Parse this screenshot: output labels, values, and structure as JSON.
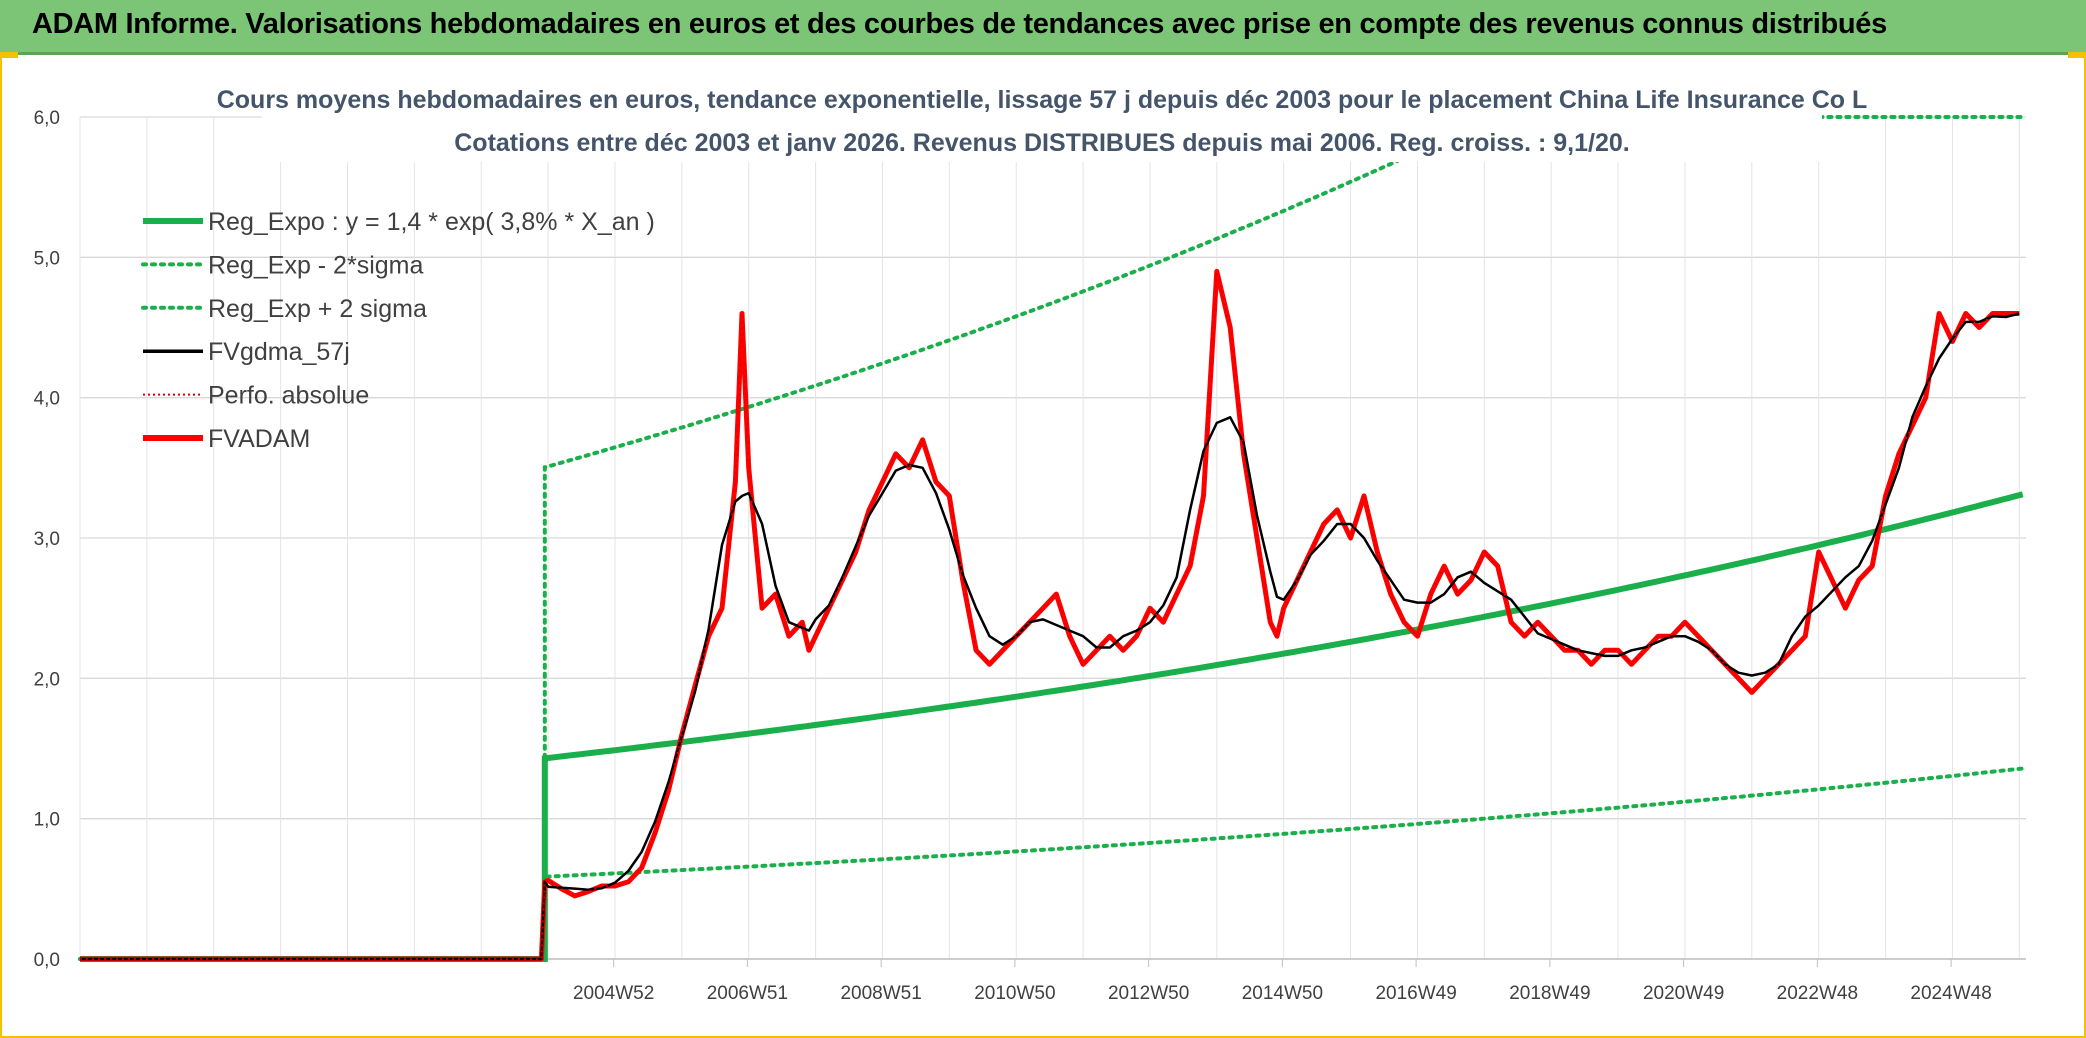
{
  "banner": {
    "title": "ADAM Informe. Valorisations hebdomadaires en euros et des courbes de tendances avec prise en compte des revenus connus distribués"
  },
  "chart_data": {
    "type": "line",
    "title_line1": "Cours moyens hebdomadaires en euros, tendance exponentielle, lissage 57 j depuis déc 2003 pour le placement China Life Insurance Co L",
    "title_line2": "Cotations entre déc 2003 et janv 2026. Revenus DISTRIBUES depuis mai 2006. Reg. croiss. : 9,1/20.",
    "ylim": [
      0,
      6
    ],
    "y_ticks": [
      "0,0",
      "1,0",
      "2,0",
      "3,0",
      "4,0",
      "5,0",
      "6,0"
    ],
    "x_ticks": [
      "2004W52",
      "2006W51",
      "2008W51",
      "2010W50",
      "2012W50",
      "2014W50",
      "2016W49",
      "2018W49",
      "2020W49",
      "2022W48",
      "2024W48"
    ],
    "x_range_years": [
      1997.0,
      2026.1
    ],
    "grid": true,
    "legend_position": "top-left",
    "colors": {
      "reg_expo": "#1aaf4b",
      "fvgdma": "#000000",
      "perfo": "#e00000",
      "fvadam": "#ff0000"
    },
    "legend": [
      {
        "key": "reg_expo",
        "label": "Reg_Expo : y = 1,4 * exp( 3,8% *  X_an )",
        "style": "solid-thick",
        "color": "#1aaf4b"
      },
      {
        "key": "reg_lo",
        "label": "Reg_Exp - 2*sigma",
        "style": "dotted",
        "color": "#1aaf4b"
      },
      {
        "key": "reg_hi",
        "label": "Reg_Exp + 2 sigma",
        "style": "dotted",
        "color": "#1aaf4b"
      },
      {
        "key": "fvgdma",
        "label": "FVgdma_57j",
        "style": "solid",
        "color": "#000000"
      },
      {
        "key": "perfo",
        "label": "Perfo. absolue",
        "style": "dotted-thin",
        "color": "#e00000"
      },
      {
        "key": "fvadam",
        "label": "FVADAM",
        "style": "solid-thick",
        "color": "#ff0000"
      }
    ],
    "regression": {
      "a": 1.43,
      "growth": 0.038,
      "start_year": 2003.95,
      "end_year": 2026.1,
      "lo_factor": 0.41,
      "hi_factor": 2.45
    },
    "series_fvadam": {
      "x": [
        1997.0,
        2003.9,
        2003.95,
        2004.0,
        2004.2,
        2004.4,
        2004.6,
        2004.8,
        2005.0,
        2005.2,
        2005.4,
        2005.6,
        2005.8,
        2006.0,
        2006.2,
        2006.4,
        2006.6,
        2006.8,
        2006.9,
        2007.0,
        2007.2,
        2007.4,
        2007.6,
        2007.8,
        2007.9,
        2008.0,
        2008.2,
        2008.4,
        2008.6,
        2008.8,
        2009.0,
        2009.2,
        2009.4,
        2009.6,
        2009.8,
        2010.0,
        2010.2,
        2010.4,
        2010.6,
        2010.8,
        2011.0,
        2011.2,
        2011.4,
        2011.6,
        2011.8,
        2012.0,
        2012.2,
        2012.4,
        2012.6,
        2012.8,
        2013.0,
        2013.2,
        2013.4,
        2013.6,
        2013.8,
        2014.0,
        2014.2,
        2014.4,
        2014.6,
        2014.8,
        2014.9,
        2015.0,
        2015.2,
        2015.4,
        2015.6,
        2015.8,
        2016.0,
        2016.2,
        2016.4,
        2016.6,
        2016.8,
        2017.0,
        2017.2,
        2017.4,
        2017.6,
        2017.8,
        2018.0,
        2018.2,
        2018.4,
        2018.6,
        2018.8,
        2019.0,
        2019.2,
        2019.4,
        2019.6,
        2019.8,
        2020.0,
        2020.2,
        2020.4,
        2020.6,
        2020.8,
        2021.0,
        2021.2,
        2021.4,
        2021.6,
        2021.8,
        2022.0,
        2022.2,
        2022.4,
        2022.6,
        2022.8,
        2023.0,
        2023.2,
        2023.4,
        2023.6,
        2023.8,
        2024.0,
        2024.2,
        2024.4,
        2024.6,
        2024.8,
        2025.0,
        2025.2,
        2025.4,
        2025.6,
        2025.8,
        2026.0
      ],
      "y": [
        0.0,
        0.0,
        0.55,
        0.56,
        0.5,
        0.45,
        0.48,
        0.52,
        0.52,
        0.55,
        0.65,
        0.9,
        1.2,
        1.6,
        1.95,
        2.3,
        2.5,
        3.4,
        4.6,
        3.5,
        2.5,
        2.6,
        2.3,
        2.4,
        2.2,
        2.3,
        2.5,
        2.7,
        2.9,
        3.2,
        3.4,
        3.6,
        3.5,
        3.7,
        3.4,
        3.3,
        2.7,
        2.2,
        2.1,
        2.2,
        2.3,
        2.4,
        2.5,
        2.6,
        2.3,
        2.1,
        2.2,
        2.3,
        2.2,
        2.3,
        2.5,
        2.4,
        2.6,
        2.8,
        3.3,
        4.9,
        4.5,
        3.6,
        3.0,
        2.4,
        2.3,
        2.5,
        2.7,
        2.9,
        3.1,
        3.2,
        3.0,
        3.3,
        2.9,
        2.6,
        2.4,
        2.3,
        2.6,
        2.8,
        2.6,
        2.7,
        2.9,
        2.8,
        2.4,
        2.3,
        2.4,
        2.3,
        2.2,
        2.2,
        2.1,
        2.2,
        2.2,
        2.1,
        2.2,
        2.3,
        2.3,
        2.4,
        2.3,
        2.2,
        2.1,
        2.0,
        1.9,
        2.0,
        2.1,
        2.2,
        2.3,
        2.9,
        2.7,
        2.5,
        2.7,
        2.8,
        3.3,
        3.6,
        3.8,
        4.0,
        4.6,
        4.4,
        4.6,
        4.5,
        4.6,
        4.6,
        4.6
      ]
    }
  }
}
